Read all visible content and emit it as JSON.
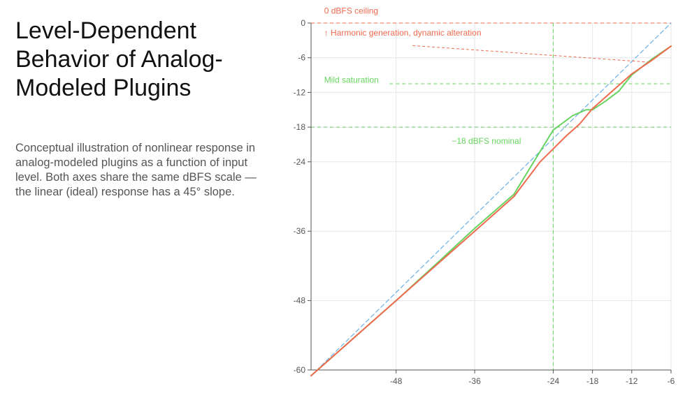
{
  "title": "Level-Dependent Behavior of Analog-Modeled Plugins",
  "description": "Conceptual illustration of nonlinear response in analog-modeled plugins as a function of input level. Both axes share the same dBFS scale — the linear (ideal) response has a 45° slope.",
  "colors": {
    "linear": "#6ab0e6",
    "mild": "#67d45f",
    "harmonic": "#ee6a4e",
    "grid": "#e6e6e6",
    "axis": "#555555"
  },
  "chart_data": {
    "type": "line",
    "xlim": [
      -61,
      -6
    ],
    "ylim": [
      -60,
      0
    ],
    "x_ticks": [
      -48,
      -36,
      -24,
      -18,
      -12,
      -6
    ],
    "x_tick_labels": [
      "-48",
      "-36",
      "-24",
      "-18",
      "-12",
      "-6"
    ],
    "y_ticks": [
      0,
      -6,
      -12,
      -18,
      -24,
      -36,
      -48,
      -60
    ],
    "y_tick_labels": [
      "0",
      "-6",
      "-12",
      "-18",
      "-24",
      "-36",
      "-48",
      "-60"
    ],
    "grid": true,
    "series": [
      {
        "key": "linear",
        "color": "#6ab0e6",
        "dash": "dashed",
        "x": [
          -61,
          -6
        ],
        "y": [
          -61,
          0
        ]
      },
      {
        "key": "mild",
        "color": "#67d45f",
        "dash": "solid",
        "x": [
          -61,
          -54,
          -48,
          -42,
          -36,
          -30,
          -24,
          -21,
          -19,
          -18,
          -16,
          -14,
          -12,
          -9,
          -6
        ],
        "y": [
          -61,
          -54,
          -48,
          -41.8,
          -35.5,
          -29.6,
          -18.5,
          -16,
          -15,
          -15,
          -13.5,
          -11.8,
          -9,
          -6.3,
          -4
        ]
      },
      {
        "key": "harmonic",
        "color": "#ee6a4e",
        "dash": "solid",
        "x": [
          -61,
          -54,
          -48,
          -42,
          -36,
          -30,
          -26,
          -22,
          -20,
          -18,
          -15,
          -12,
          -9,
          -6
        ],
        "y": [
          -61,
          -54,
          -48,
          -42,
          -36,
          -30,
          -24,
          -19.5,
          -17.5,
          -14.8,
          -11.8,
          -8.8,
          -6.5,
          -4
        ]
      }
    ],
    "reference_lines": [
      {
        "key": "ceiling",
        "orientation": "horizontal",
        "value": 0,
        "color": "#ee6a4e"
      },
      {
        "key": "mild-line",
        "orientation": "horizontal",
        "value": -10.5,
        "from_x": -49,
        "color": "#67d45f"
      },
      {
        "key": "nominal-h",
        "orientation": "horizontal",
        "value": -18,
        "color": "#67d45f"
      },
      {
        "key": "nominal-v",
        "orientation": "vertical",
        "value": -24,
        "color": "#67d45f"
      }
    ],
    "annotations": [
      {
        "key": "ceiling-label",
        "text": "0 dBFS ceiling",
        "color": "#ee6a4e",
        "x": -59,
        "y": 1.6
      },
      {
        "key": "harmonic-label",
        "text": "↑ Harmonic generation, dynamic alteration",
        "color": "#ee6a4e",
        "x": -59,
        "y": -2.2
      },
      {
        "key": "mild-label",
        "text": "Mild saturation",
        "color": "#67d45f",
        "x": -59,
        "y": -10.3
      },
      {
        "key": "nominal-label",
        "text": "−18 dBFS nominal",
        "color": "#67d45f",
        "x": -39.5,
        "y": -20.9
      }
    ],
    "pointer": {
      "color": "#ee6a4e",
      "from": [
        -45.5,
        -3.9
      ],
      "to": [
        -9,
        -6.8
      ]
    }
  }
}
